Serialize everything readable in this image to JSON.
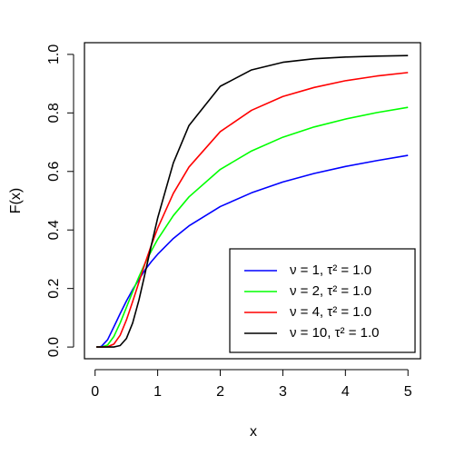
{
  "chart_data": {
    "type": "line",
    "x_label": "x",
    "y_label": "F(x)",
    "x": [
      0.02,
      0.05,
      0.1,
      0.2,
      0.3,
      0.4,
      0.5,
      0.6,
      0.7,
      0.8,
      0.9,
      1,
      1.25,
      1.5,
      2,
      2.5,
      3,
      3.5,
      4,
      4.5,
      5
    ],
    "series": [
      {
        "name": "ν = 1, τ² = 1.0",
        "color": "#0000ff",
        "values": [
          0,
          0,
          0.002,
          0.025,
          0.069,
          0.114,
          0.157,
          0.196,
          0.231,
          0.264,
          0.292,
          0.317,
          0.371,
          0.414,
          0.48,
          0.527,
          0.564,
          0.593,
          0.617,
          0.637,
          0.655
        ]
      },
      {
        "name": "ν = 2, τ² = 1.0",
        "color": "#00ff00",
        "values": [
          0,
          0,
          0,
          0.007,
          0.036,
          0.082,
          0.135,
          0.189,
          0.24,
          0.287,
          0.329,
          0.368,
          0.449,
          0.513,
          0.607,
          0.67,
          0.717,
          0.752,
          0.779,
          0.801,
          0.819
        ]
      },
      {
        "name": "ν = 4, τ² = 1.0",
        "color": "#ff0000",
        "values": [
          0,
          0,
          0,
          0.001,
          0.01,
          0.04,
          0.092,
          0.155,
          0.221,
          0.287,
          0.349,
          0.406,
          0.525,
          0.615,
          0.736,
          0.809,
          0.856,
          0.887,
          0.91,
          0.926,
          0.938
        ]
      },
      {
        "name": "ν = 10, τ² = 1.0",
        "color": "#000000",
        "values": [
          0,
          0,
          0,
          0,
          0.0002,
          0.005,
          0.029,
          0.082,
          0.16,
          0.253,
          0.349,
          0.441,
          0.629,
          0.757,
          0.891,
          0.947,
          0.973,
          0.985,
          0.991,
          0.994,
          0.996
        ]
      }
    ],
    "xlim": [
      -0.17,
      5.2
    ],
    "ylim": [
      -0.04,
      1.04
    ],
    "xticks": [
      0,
      1,
      2,
      3,
      4,
      5
    ],
    "yticks": [
      {
        "value": 0,
        "label": "0.0"
      },
      {
        "value": 0.2,
        "label": "0.2"
      },
      {
        "value": 0.4,
        "label": "0.4"
      },
      {
        "value": 0.6,
        "label": "0.6"
      },
      {
        "value": 0.8,
        "label": "0.8"
      },
      {
        "value": 1,
        "label": "1.0"
      }
    ],
    "legend": "bottom-right"
  }
}
